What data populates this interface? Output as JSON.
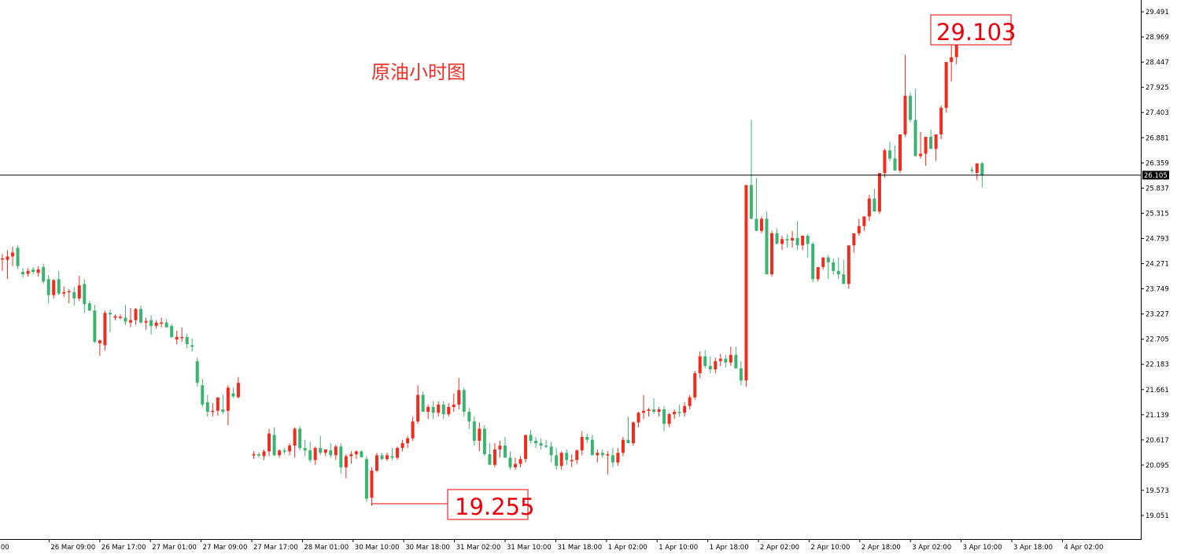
{
  "chart_data": {
    "type": "candlestick",
    "title": "原油小时图",
    "colors": {
      "up": "#ef2d1e",
      "down": "#3cb371",
      "axis": "#000000",
      "callout": "#e8000d",
      "title": "#f0302a"
    },
    "ylim": [
      18.75,
      29.7
    ],
    "y_ticks": [
      "29.491",
      "28.969",
      "28.447",
      "27.925",
      "27.403",
      "26.881",
      "26.359",
      "25.837",
      "25.315",
      "24.793",
      "24.271",
      "23.749",
      "23.227",
      "22.705",
      "22.183",
      "21.661",
      "21.139",
      "20.617",
      "20.095",
      "19.573",
      "19.051"
    ],
    "x_ticks": [
      ":00",
      "26 Mar 09:00",
      "26 Mar 17:00",
      "27 Mar 01:00",
      "27 Mar 09:00",
      "27 Mar 17:00",
      "28 Mar 01:00",
      "30 Mar 10:00",
      "30 Mar 18:00",
      "31 Mar 02:00",
      "31 Mar 10:00",
      "31 Mar 18:00",
      "1 Apr 02:00",
      "1 Apr 10:00",
      "1 Apr 18:00",
      "2 Apr 02:00",
      "2 Apr 10:00",
      "2 Apr 18:00",
      "3 Apr 02:00",
      "3 Apr 10:00",
      "3 Apr 18:00",
      "4 Apr 02:00"
    ],
    "current_price": "26.105",
    "current_value": 26.105,
    "low_label": "19.255",
    "low_value": 19.255,
    "high_label": "29.103",
    "high_value": 29.103,
    "candles": [
      [
        24.37,
        24.47,
        24.12,
        24.38
      ],
      [
        24.35,
        24.55,
        23.95,
        24.42
      ],
      [
        24.42,
        24.62,
        24.22,
        24.5
      ],
      [
        24.6,
        24.65,
        24.15,
        24.22
      ],
      [
        24.1,
        24.18,
        23.98,
        24.05
      ],
      [
        24.06,
        24.18,
        24.0,
        24.12
      ],
      [
        24.15,
        24.2,
        24.05,
        24.1
      ],
      [
        24.08,
        24.22,
        24.0,
        24.15
      ],
      [
        24.2,
        24.27,
        23.85,
        23.9
      ],
      [
        23.95,
        24.03,
        23.45,
        23.62
      ],
      [
        23.62,
        23.95,
        23.55,
        23.93
      ],
      [
        23.95,
        24.12,
        23.62,
        23.65
      ],
      [
        23.65,
        23.8,
        23.58,
        23.68
      ],
      [
        23.68,
        23.75,
        23.45,
        23.7
      ],
      [
        23.68,
        23.78,
        23.4,
        23.55
      ],
      [
        23.55,
        24.02,
        23.5,
        23.82
      ],
      [
        23.85,
        23.95,
        23.25,
        23.43
      ],
      [
        23.45,
        23.5,
        23.28,
        23.3
      ],
      [
        23.3,
        23.42,
        22.62,
        22.65
      ],
      [
        22.62,
        22.7,
        22.36,
        22.68
      ],
      [
        22.58,
        23.3,
        22.47,
        23.25
      ],
      [
        23.25,
        23.32,
        22.85,
        23.22
      ],
      [
        23.15,
        23.22,
        23.1,
        23.18
      ],
      [
        23.15,
        23.22,
        23.12,
        23.17
      ],
      [
        23.15,
        23.42,
        23.0,
        23.07
      ],
      [
        23.05,
        23.35,
        22.95,
        23.1
      ],
      [
        23.1,
        23.35,
        23.0,
        23.33
      ],
      [
        23.33,
        23.4,
        23.02,
        23.05
      ],
      [
        23.05,
        23.15,
        22.9,
        23.08
      ],
      [
        23.1,
        23.2,
        22.8,
        22.98
      ],
      [
        22.98,
        23.1,
        22.92,
        23.05
      ],
      [
        23.05,
        23.15,
        22.95,
        23.05
      ],
      [
        23.05,
        23.12,
        22.98,
        22.95
      ],
      [
        22.98,
        23.02,
        22.73,
        22.75
      ],
      [
        22.7,
        22.88,
        22.6,
        22.75
      ],
      [
        22.75,
        22.95,
        22.65,
        22.75
      ],
      [
        22.75,
        22.82,
        22.52,
        22.6
      ],
      [
        22.58,
        22.72,
        22.45,
        22.55
      ],
      [
        22.25,
        22.32,
        21.72,
        21.8
      ],
      [
        21.75,
        21.88,
        21.3,
        21.35
      ],
      [
        21.4,
        21.55,
        21.1,
        21.2
      ],
      [
        21.22,
        21.38,
        21.1,
        21.22
      ],
      [
        21.22,
        21.4,
        21.12,
        21.5
      ],
      [
        21.25,
        21.55,
        21.15,
        21.2
      ],
      [
        21.22,
        21.75,
        20.92,
        21.7
      ],
      [
        21.58,
        21.7,
        21.48,
        21.52
      ],
      [
        21.5,
        21.92,
        21.48,
        21.8
      ],
      null,
      null,
      [
        20.3,
        20.38,
        20.22,
        20.32
      ],
      [
        20.32,
        20.36,
        20.25,
        20.3
      ],
      [
        20.28,
        20.42,
        20.2,
        20.38
      ],
      [
        20.38,
        20.85,
        20.28,
        20.75
      ],
      [
        20.72,
        20.88,
        20.28,
        20.3
      ],
      [
        20.3,
        20.42,
        20.25,
        20.4
      ],
      [
        20.4,
        20.45,
        20.32,
        20.38
      ],
      [
        20.38,
        20.55,
        20.3,
        20.5
      ],
      [
        20.5,
        20.88,
        20.25,
        20.85
      ],
      [
        20.85,
        20.9,
        20.4,
        20.45
      ],
      [
        20.45,
        20.62,
        20.28,
        20.4
      ],
      [
        20.4,
        20.58,
        20.15,
        20.2
      ],
      [
        20.2,
        20.48,
        20.1,
        20.45
      ],
      [
        20.45,
        20.7,
        20.3,
        20.35
      ],
      [
        20.35,
        20.42,
        20.28,
        20.42
      ],
      [
        20.4,
        20.55,
        20.25,
        20.3
      ],
      [
        20.3,
        20.52,
        20.2,
        20.48
      ],
      [
        20.48,
        20.55,
        19.92,
        20.05
      ],
      [
        20.05,
        20.32,
        19.82,
        20.28
      ],
      [
        20.28,
        20.38,
        20.12,
        20.32
      ],
      [
        20.32,
        20.4,
        20.22,
        20.38
      ],
      [
        20.38,
        20.4,
        20.25,
        20.26
      ],
      [
        20.22,
        20.28,
        19.34,
        19.4
      ],
      [
        19.42,
        20.05,
        19.255,
        19.98
      ],
      [
        19.98,
        20.35,
        19.95,
        20.3
      ],
      [
        20.3,
        20.35,
        20.2,
        20.22
      ],
      [
        20.22,
        20.35,
        20.18,
        20.3
      ],
      [
        20.28,
        20.45,
        20.2,
        20.25
      ],
      [
        20.25,
        20.48,
        20.2,
        20.45
      ],
      [
        20.45,
        20.62,
        20.38,
        20.55
      ],
      [
        20.55,
        20.7,
        20.45,
        20.65
      ],
      [
        20.65,
        21.1,
        20.6,
        21.0
      ],
      [
        21.0,
        21.75,
        20.95,
        21.55
      ],
      [
        21.55,
        21.62,
        21.2,
        21.2
      ],
      [
        21.2,
        21.35,
        21.05,
        21.3
      ],
      [
        21.3,
        21.42,
        21.05,
        21.18
      ],
      [
        21.18,
        21.42,
        21.1,
        21.35
      ],
      [
        21.35,
        21.42,
        21.05,
        21.15
      ],
      [
        21.15,
        21.38,
        21.1,
        21.3
      ],
      [
        21.3,
        21.58,
        21.2,
        21.35
      ],
      [
        21.35,
        21.9,
        21.25,
        21.65
      ],
      [
        21.65,
        21.7,
        21.1,
        21.2
      ],
      [
        21.2,
        21.28,
        20.85,
        21.0
      ],
      [
        21.0,
        21.1,
        20.5,
        20.6
      ],
      [
        20.6,
        20.98,
        20.38,
        20.85
      ],
      [
        20.85,
        20.92,
        20.28,
        20.32
      ],
      [
        20.32,
        20.55,
        20.12,
        20.1
      ],
      [
        20.1,
        20.55,
        20.05,
        20.42
      ],
      [
        20.42,
        20.6,
        20.25,
        20.5
      ],
      [
        20.5,
        20.68,
        20.38,
        20.25
      ],
      [
        20.25,
        20.38,
        20.0,
        20.05
      ],
      [
        20.05,
        20.25,
        20.0,
        20.12
      ],
      [
        20.12,
        20.28,
        20.05,
        20.22
      ],
      [
        20.22,
        20.72,
        20.15,
        20.72
      ],
      [
        20.72,
        20.82,
        20.55,
        20.6
      ],
      [
        20.6,
        20.68,
        20.45,
        20.55
      ],
      [
        20.55,
        20.65,
        20.42,
        20.5
      ],
      [
        20.5,
        20.62,
        20.45,
        20.48
      ],
      [
        20.48,
        20.58,
        20.15,
        20.3
      ],
      [
        20.3,
        20.45,
        20.0,
        20.08
      ],
      [
        20.08,
        20.38,
        20.0,
        20.35
      ],
      [
        20.35,
        20.42,
        20.1,
        20.2
      ],
      [
        20.2,
        20.32,
        20.05,
        20.2
      ],
      [
        20.2,
        20.42,
        20.12,
        20.4
      ],
      [
        20.4,
        20.8,
        20.3,
        20.68
      ],
      [
        20.68,
        20.75,
        20.55,
        20.62
      ],
      [
        20.62,
        20.72,
        20.4,
        20.3
      ],
      [
        20.3,
        20.42,
        20.15,
        20.35
      ],
      [
        20.35,
        20.42,
        20.25,
        20.3
      ],
      [
        20.3,
        20.38,
        19.9,
        20.32
      ],
      [
        20.3,
        20.45,
        20.05,
        20.15
      ],
      [
        20.15,
        20.45,
        20.08,
        20.35
      ],
      [
        20.35,
        20.68,
        20.28,
        20.62
      ],
      [
        20.62,
        21.1,
        20.55,
        20.55
      ],
      [
        20.55,
        21.0,
        20.5,
        20.98
      ],
      [
        20.98,
        21.2,
        20.88,
        21.18
      ],
      [
        21.18,
        21.55,
        21.05,
        21.22
      ],
      [
        21.22,
        21.28,
        21.1,
        21.25
      ],
      [
        21.25,
        21.48,
        21.15,
        21.2
      ],
      [
        21.2,
        21.3,
        21.1,
        21.25
      ],
      [
        21.25,
        21.32,
        20.8,
        20.95
      ],
      [
        20.95,
        21.18,
        20.88,
        21.15
      ],
      [
        21.15,
        21.25,
        21.05,
        21.2
      ],
      [
        21.2,
        21.35,
        21.1,
        21.18
      ],
      [
        21.18,
        21.4,
        21.1,
        21.32
      ],
      [
        21.32,
        21.55,
        21.25,
        21.5
      ],
      [
        21.5,
        22.05,
        21.45,
        22.0
      ],
      [
        22.0,
        22.45,
        21.9,
        22.35
      ],
      [
        22.35,
        22.48,
        22.1,
        22.15
      ],
      [
        22.15,
        22.35,
        22.0,
        22.08
      ],
      [
        22.08,
        22.32,
        22.0,
        22.25
      ],
      [
        22.25,
        22.4,
        22.15,
        22.3
      ],
      [
        22.3,
        22.38,
        22.12,
        22.22
      ],
      [
        22.22,
        22.55,
        22.15,
        22.38
      ],
      [
        22.38,
        22.55,
        22.1,
        22.1
      ],
      [
        22.1,
        22.25,
        21.75,
        21.85
      ],
      [
        21.85,
        22.1,
        21.72,
        25.9
      ],
      [
        25.9,
        27.25,
        25.8,
        25.2
      ],
      [
        25.2,
        26.05,
        25.1,
        24.95
      ],
      [
        24.95,
        25.25,
        24.9,
        25.2
      ],
      [
        25.2,
        25.35,
        24.25,
        24.05
      ],
      [
        24.05,
        24.95,
        24.0,
        24.9
      ],
      [
        24.9,
        25.0,
        24.75,
        24.68
      ],
      [
        24.68,
        24.85,
        24.55,
        24.78
      ],
      [
        24.78,
        24.88,
        24.6,
        24.75
      ],
      [
        24.75,
        24.95,
        24.6,
        24.8
      ],
      [
        24.8,
        25.15,
        24.55,
        24.65
      ],
      [
        24.65,
        24.82,
        24.55,
        24.85
      ],
      [
        24.85,
        24.88,
        24.4,
        24.68
      ],
      [
        24.68,
        24.72,
        23.88,
        23.95
      ],
      [
        23.95,
        24.2,
        23.9,
        24.2
      ],
      [
        24.2,
        24.35,
        24.15,
        24.4
      ],
      [
        24.4,
        24.45,
        23.95,
        24.3
      ],
      [
        24.3,
        24.38,
        24.05,
        24.12
      ],
      [
        24.12,
        24.4,
        23.95,
        24.05
      ],
      [
        24.05,
        24.35,
        23.95,
        23.85
      ],
      [
        23.85,
        24.35,
        23.75,
        24.65
      ],
      [
        24.65,
        24.82,
        24.5,
        24.9
      ],
      [
        24.9,
        25.2,
        24.85,
        25.05
      ],
      [
        25.05,
        25.15,
        24.95,
        25.25
      ],
      [
        25.25,
        25.7,
        25.15,
        25.62
      ],
      [
        25.62,
        25.82,
        25.5,
        25.35
      ],
      [
        25.35,
        26.1,
        25.3,
        26.15
      ],
      [
        26.15,
        26.65,
        26.05,
        26.62
      ],
      [
        26.62,
        26.8,
        26.4,
        26.45
      ],
      [
        26.45,
        26.72,
        26.25,
        26.2
      ],
      [
        26.2,
        26.35,
        26.15,
        26.95
      ],
      [
        26.95,
        28.6,
        26.9,
        27.75
      ],
      [
        27.75,
        27.82,
        27.2,
        27.25
      ],
      [
        27.25,
        27.9,
        27.18,
        26.5
      ],
      [
        26.5,
        27.0,
        26.45,
        26.55
      ],
      [
        26.55,
        26.9,
        26.3,
        26.9
      ],
      [
        26.9,
        27.05,
        26.78,
        26.65
      ],
      [
        26.65,
        26.88,
        26.4,
        26.95
      ],
      [
        26.95,
        27.55,
        26.85,
        27.5
      ],
      [
        27.5,
        27.9,
        27.4,
        28.45
      ],
      [
        28.45,
        29.103,
        28.05,
        28.55
      ],
      [
        28.55,
        28.75,
        28.4,
        28.95
      ],
      null,
      null,
      [
        26.22,
        26.28,
        26.15,
        26.2
      ],
      [
        26.15,
        26.2,
        26.0,
        26.35
      ],
      [
        26.35,
        26.38,
        25.85,
        26.1
      ]
    ]
  }
}
